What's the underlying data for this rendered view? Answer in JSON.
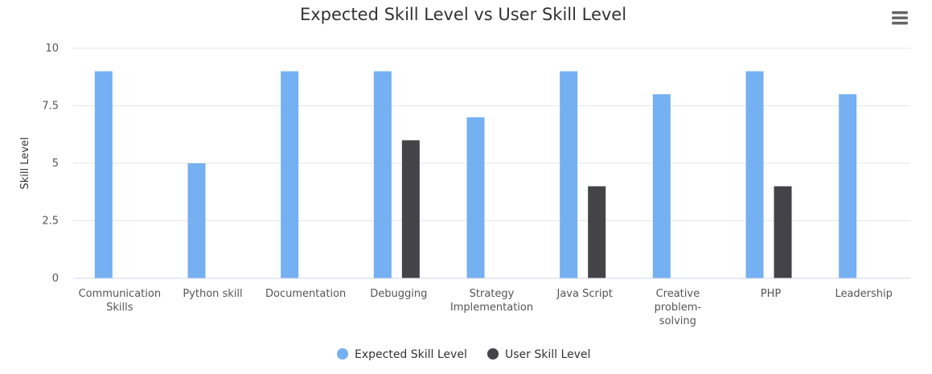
{
  "chart_data": {
    "type": "bar",
    "title": "Expected Skill Level vs User Skill Level",
    "xlabel": "",
    "ylabel": "Skill Level",
    "ylim": [
      0,
      10
    ],
    "yticks": [
      "0",
      "2.5",
      "5",
      "7.5",
      "10"
    ],
    "ytick_values": [
      0,
      2.5,
      5,
      7.5,
      10
    ],
    "categories": [
      [
        "Communication",
        "Skills"
      ],
      [
        "Python skill"
      ],
      [
        "Documentation"
      ],
      [
        "Debugging"
      ],
      [
        "Strategy",
        "Implementation"
      ],
      [
        "Java Script"
      ],
      [
        "Creative",
        "problem-",
        "solving"
      ],
      [
        "PHP"
      ],
      [
        "Leadership"
      ]
    ],
    "series": [
      {
        "name": "Expected Skill Level",
        "color": "#74b0f2",
        "values": [
          9,
          5,
          9,
          9,
          7,
          9,
          8,
          9,
          8
        ]
      },
      {
        "name": "User Skill Level",
        "color": "#434348",
        "values": [
          0,
          0,
          0,
          6,
          0,
          4,
          0,
          4,
          0
        ]
      }
    ],
    "grid": true,
    "legend": "bottom-center"
  },
  "menu": {
    "icon": "hamburger-menu-icon"
  }
}
